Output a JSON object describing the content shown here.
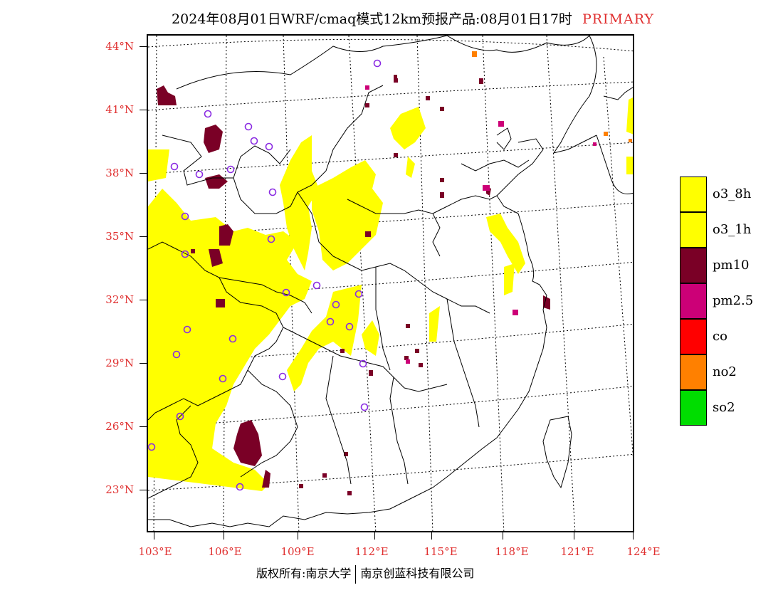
{
  "header": {
    "title": "2024年08月01日WRF/cmaq模式12km预报产品:08月01日17时",
    "tag": "PRIMARY"
  },
  "axes": {
    "lat_labels": [
      "44°N",
      "41°N",
      "38°N",
      "35°N",
      "32°N",
      "29°N",
      "26°N",
      "23°N"
    ],
    "lon_labels": [
      "103°E",
      "106°E",
      "109°E",
      "112°E",
      "115°E",
      "118°E",
      "121°E",
      "124°E"
    ]
  },
  "legend": {
    "items": [
      {
        "label": "o3_8h",
        "color": "#ffff00"
      },
      {
        "label": "o3_1h",
        "color": "#ffff00"
      },
      {
        "label": "pm10",
        "color": "#7a0026"
      },
      {
        "label": "pm2.5",
        "color": "#cc0077"
      },
      {
        "label": "co",
        "color": "#ff0000"
      },
      {
        "label": "no2",
        "color": "#ff8000"
      },
      {
        "label": "so2",
        "color": "#00dd00"
      }
    ]
  },
  "footer": {
    "copyright": "版权所有:南京大学",
    "company": "南京创蓝科技有限公司"
  },
  "colors": {
    "o3": "#ffff00",
    "pm10": "#7a0026",
    "pm25": "#cc0077",
    "no2": "#ff8000",
    "station_ring": "#8a2be2",
    "label": "#e03030"
  },
  "stations": [
    [
      262,
      302
    ],
    [
      216,
      626
    ],
    [
      262,
      462
    ],
    [
      247,
      497
    ],
    [
      252,
      584
    ],
    [
      258,
      355
    ],
    [
      243,
      233
    ],
    [
      291,
      159
    ],
    [
      278,
      244
    ],
    [
      322,
      237
    ],
    [
      347,
      177
    ],
    [
      355,
      197
    ],
    [
      376,
      205
    ],
    [
      381,
      269
    ],
    [
      379,
      335
    ],
    [
      400,
      410
    ],
    [
      443,
      400
    ],
    [
      470,
      427
    ],
    [
      489,
      458
    ],
    [
      508,
      510
    ],
    [
      510,
      571
    ],
    [
      528,
      88
    ],
    [
      502,
      412
    ],
    [
      462,
      451
    ],
    [
      395,
      528
    ],
    [
      335,
      683
    ],
    [
      311,
      531
    ],
    [
      325,
      475
    ]
  ]
}
